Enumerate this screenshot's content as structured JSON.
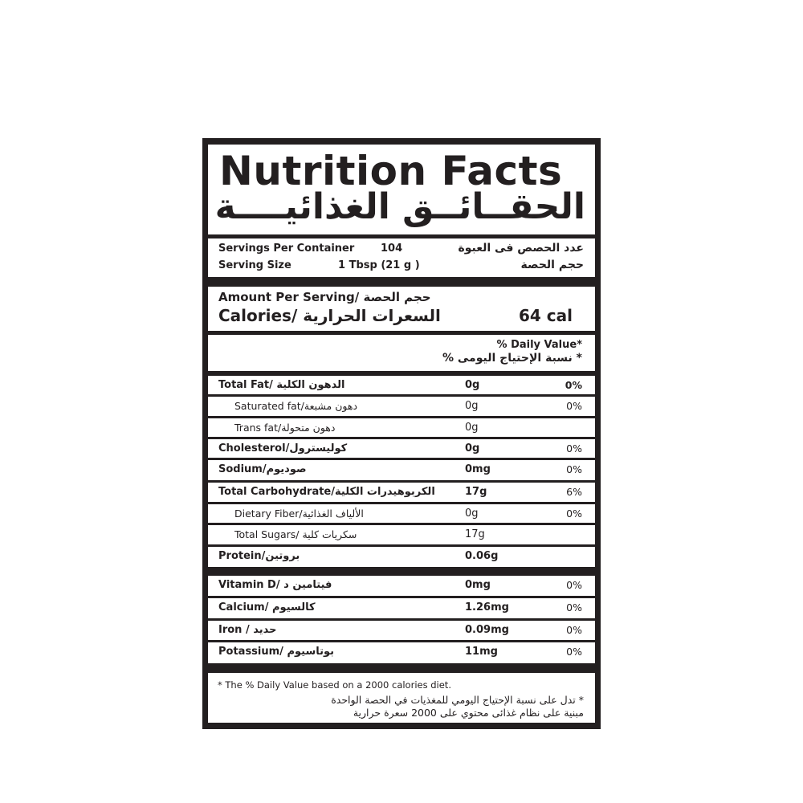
{
  "title": {
    "en": "Nutrition Facts",
    "ar": "الحقــائــق الغذائيــــة"
  },
  "servings": {
    "per_container_label": "Servings Per Container",
    "per_container_value": "104",
    "per_container_ar": "عدد الحصص فى العبوة",
    "size_label": "Serving Size",
    "size_value": "1 Tbsp (21 g )",
    "size_ar": "حجم الحصة"
  },
  "amount": {
    "header": "Amount Per Serving/ حجم الحصة",
    "calories_label": "Calories/ السعرات الحرارية",
    "calories_value": "64 cal"
  },
  "daily_value": {
    "en": "% Daily Value*",
    "ar": "* نسبة الإحتياج اليومى %"
  },
  "nutrients": [
    {
      "label": "Total Fat/ الدهون الكلية",
      "amount": "0g",
      "dv": "0%",
      "bold": true,
      "indent": false
    },
    {
      "label": "Saturated fat/دهون مشبعة",
      "amount": "0g",
      "dv": "0%",
      "bold": false,
      "indent": true
    },
    {
      "label": "Trans fat/دهون متحولة",
      "amount": "0g",
      "dv": "",
      "bold": false,
      "indent": true
    },
    {
      "label": "Cholesterol/كوليسترول",
      "amount": "0g",
      "dv": "0%",
      "bold": true,
      "indent": false
    },
    {
      "label": "Sodium/صوديوم",
      "amount": "0mg",
      "dv": "0%",
      "bold": true,
      "indent": false
    },
    {
      "label": "Total Carbohydrate/الكربوهيدرات الكلية",
      "amount": "17g",
      "dv": "6%",
      "bold": true,
      "indent": false
    },
    {
      "label": "Dietary Fiber/الألياف الغذائية",
      "amount": "0g",
      "dv": "0%",
      "bold": false,
      "indent": true
    },
    {
      "label": "Total Sugars/ سكريات كلية",
      "amount": "17g",
      "dv": "",
      "bold": false,
      "indent": true
    },
    {
      "label": "Protein/بروتين",
      "amount": "0.06g",
      "dv": "",
      "bold": true,
      "indent": false
    }
  ],
  "minerals": [
    {
      "label": "Vitamin D/ فيتامين د",
      "amount": "0mg",
      "dv": "0%"
    },
    {
      "label": "Calcium/ كالسيوم",
      "amount": "1.26mg",
      "dv": "0%"
    },
    {
      "label": "Iron / حديد",
      "amount": "0.09mg",
      "dv": "0%"
    },
    {
      "label": "Potassium/ بوتاسيوم",
      "amount": "11mg",
      "dv": "0%"
    }
  ],
  "footnote": {
    "en": "* The % Daily Value based on a 2000 calories diet.",
    "ar_line1": "* تدل على نسبة الإحتياج اليومي للمغذيات في الحصة الواحدة",
    "ar_line2": "مبنية على نظام غذائى محتوي على 2000 سعرة حرارية"
  },
  "colors": {
    "ink": "#231f20",
    "background": "#ffffff"
  }
}
